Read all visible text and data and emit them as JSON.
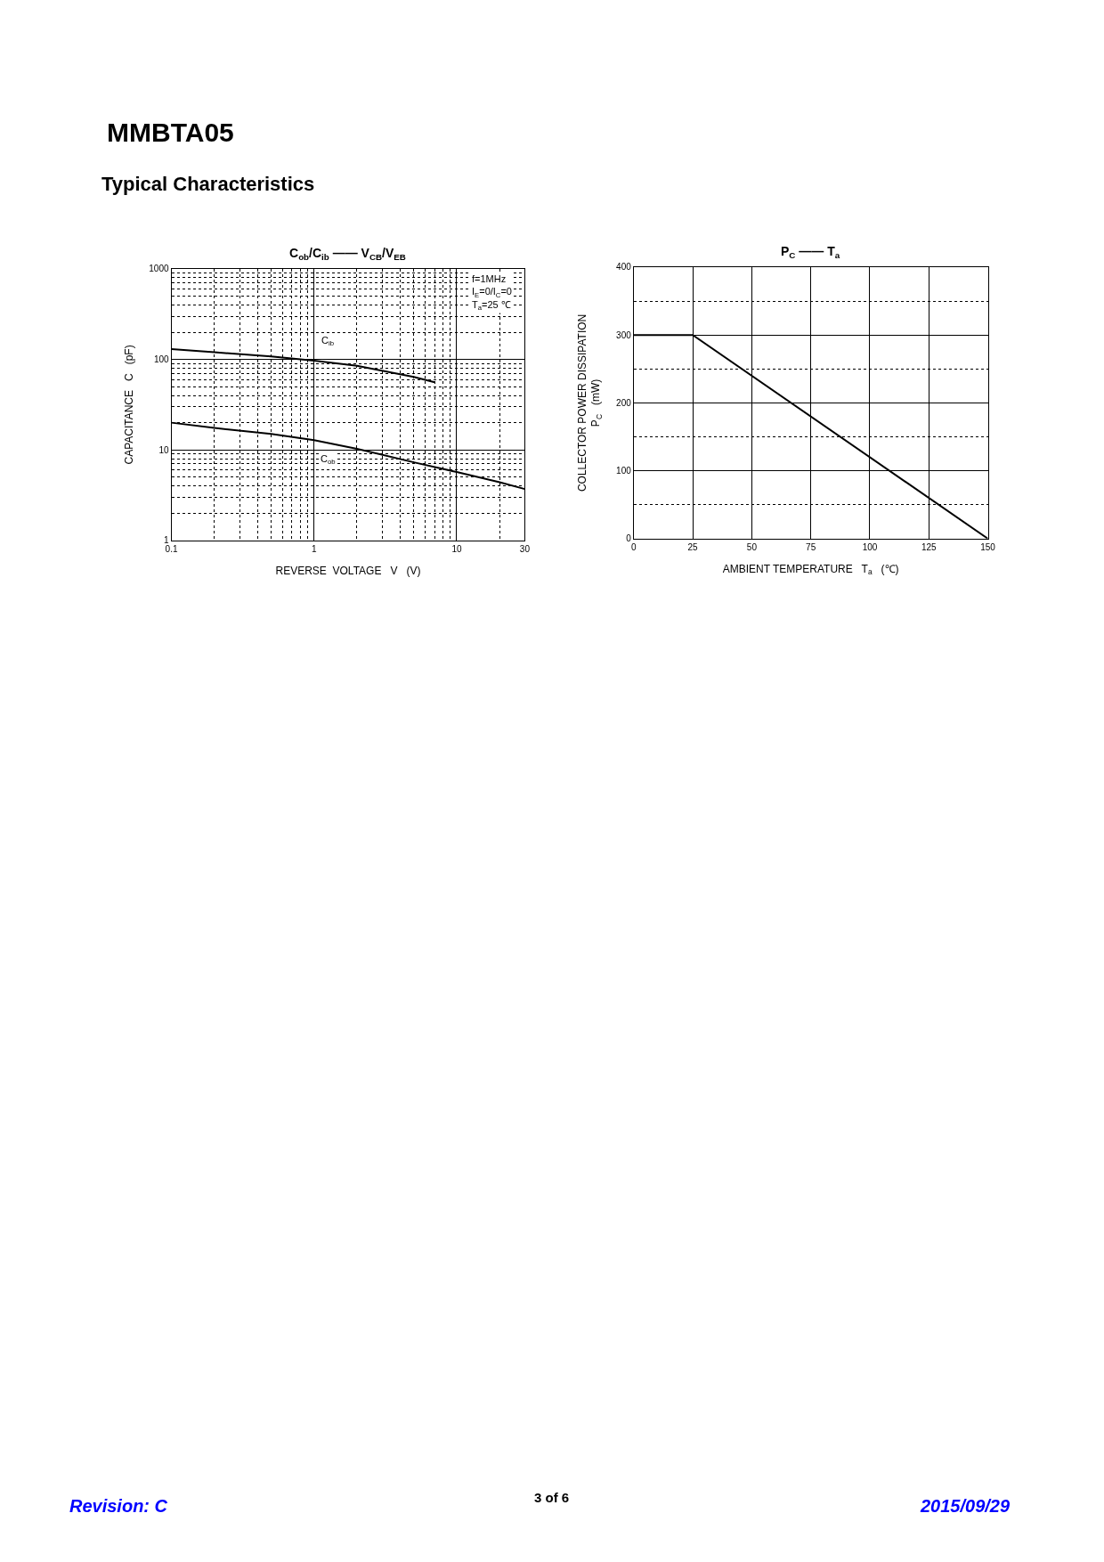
{
  "chart_data": [
    {
      "type": "line",
      "title": "C$_{ob}$/C$_{ib}$ —— V$_{CB}$/V$_{EB}$",
      "xlabel": "REVERSE  VOLTAGE   V   (V)",
      "ylabel": "CAPACITANCE   C   (pF)",
      "annotations": [
        "MMBTA05",
        "Typical Characteristics",
        "f=1MHz\nI$_{E}$=0/I$_{C}$=0\nT$_{a}$=25 ℃"
      ],
      "log": "xy",
      "xlim": [
        0.1,
        30
      ],
      "ylim": [
        1,
        1000
      ],
      "xticks": [
        0.1,
        1,
        10,
        30
      ],
      "yticks": [
        1,
        10,
        100,
        1000
      ],
      "grid": true,
      "legend": false,
      "marker": "none",
      "line_style": "solid",
      "series": [
        {
          "name": "C$_{ib}$",
          "color": "#000000",
          "x": [
            0.1,
            0.2,
            0.5,
            1,
            2,
            5,
            7
          ],
          "values": [
            130,
            120,
            108,
            97,
            85,
            64,
            56
          ]
        },
        {
          "name": "C$_{ob}$",
          "color": "#000000",
          "x": [
            0.1,
            0.2,
            0.5,
            1,
            2,
            5,
            10,
            20,
            30
          ],
          "values": [
            20,
            17.5,
            15,
            12.8,
            10.3,
            7.3,
            5.7,
            4.4,
            3.7
          ]
        }
      ]
    },
    {
      "type": "line",
      "title": "P$_{C}$ —— T$_{a}$",
      "xlabel": "AMBIENT TEMPERATURE   T$_{a}$   (℃)",
      "ylabel": "COLLECTOR POWER DISSIPATION\nP$_{C}$   (mW)",
      "annotations": [
        "Revision: C",
        "3 of 6",
        "2015/09/29"
      ],
      "xlim": [
        0,
        150
      ],
      "ylim": [
        0,
        400
      ],
      "xticks": [
        0,
        25,
        50,
        75,
        100,
        125,
        150
      ],
      "yticks": [
        0,
        100,
        200,
        300,
        400
      ],
      "grid": true,
      "legend": false,
      "marker": "none",
      "line_style": "solid",
      "series": [
        {
          "color": "#000000",
          "x": [
            0,
            25,
            150
          ],
          "values": [
            300,
            300,
            0
          ]
        }
      ]
    }
  ]
}
